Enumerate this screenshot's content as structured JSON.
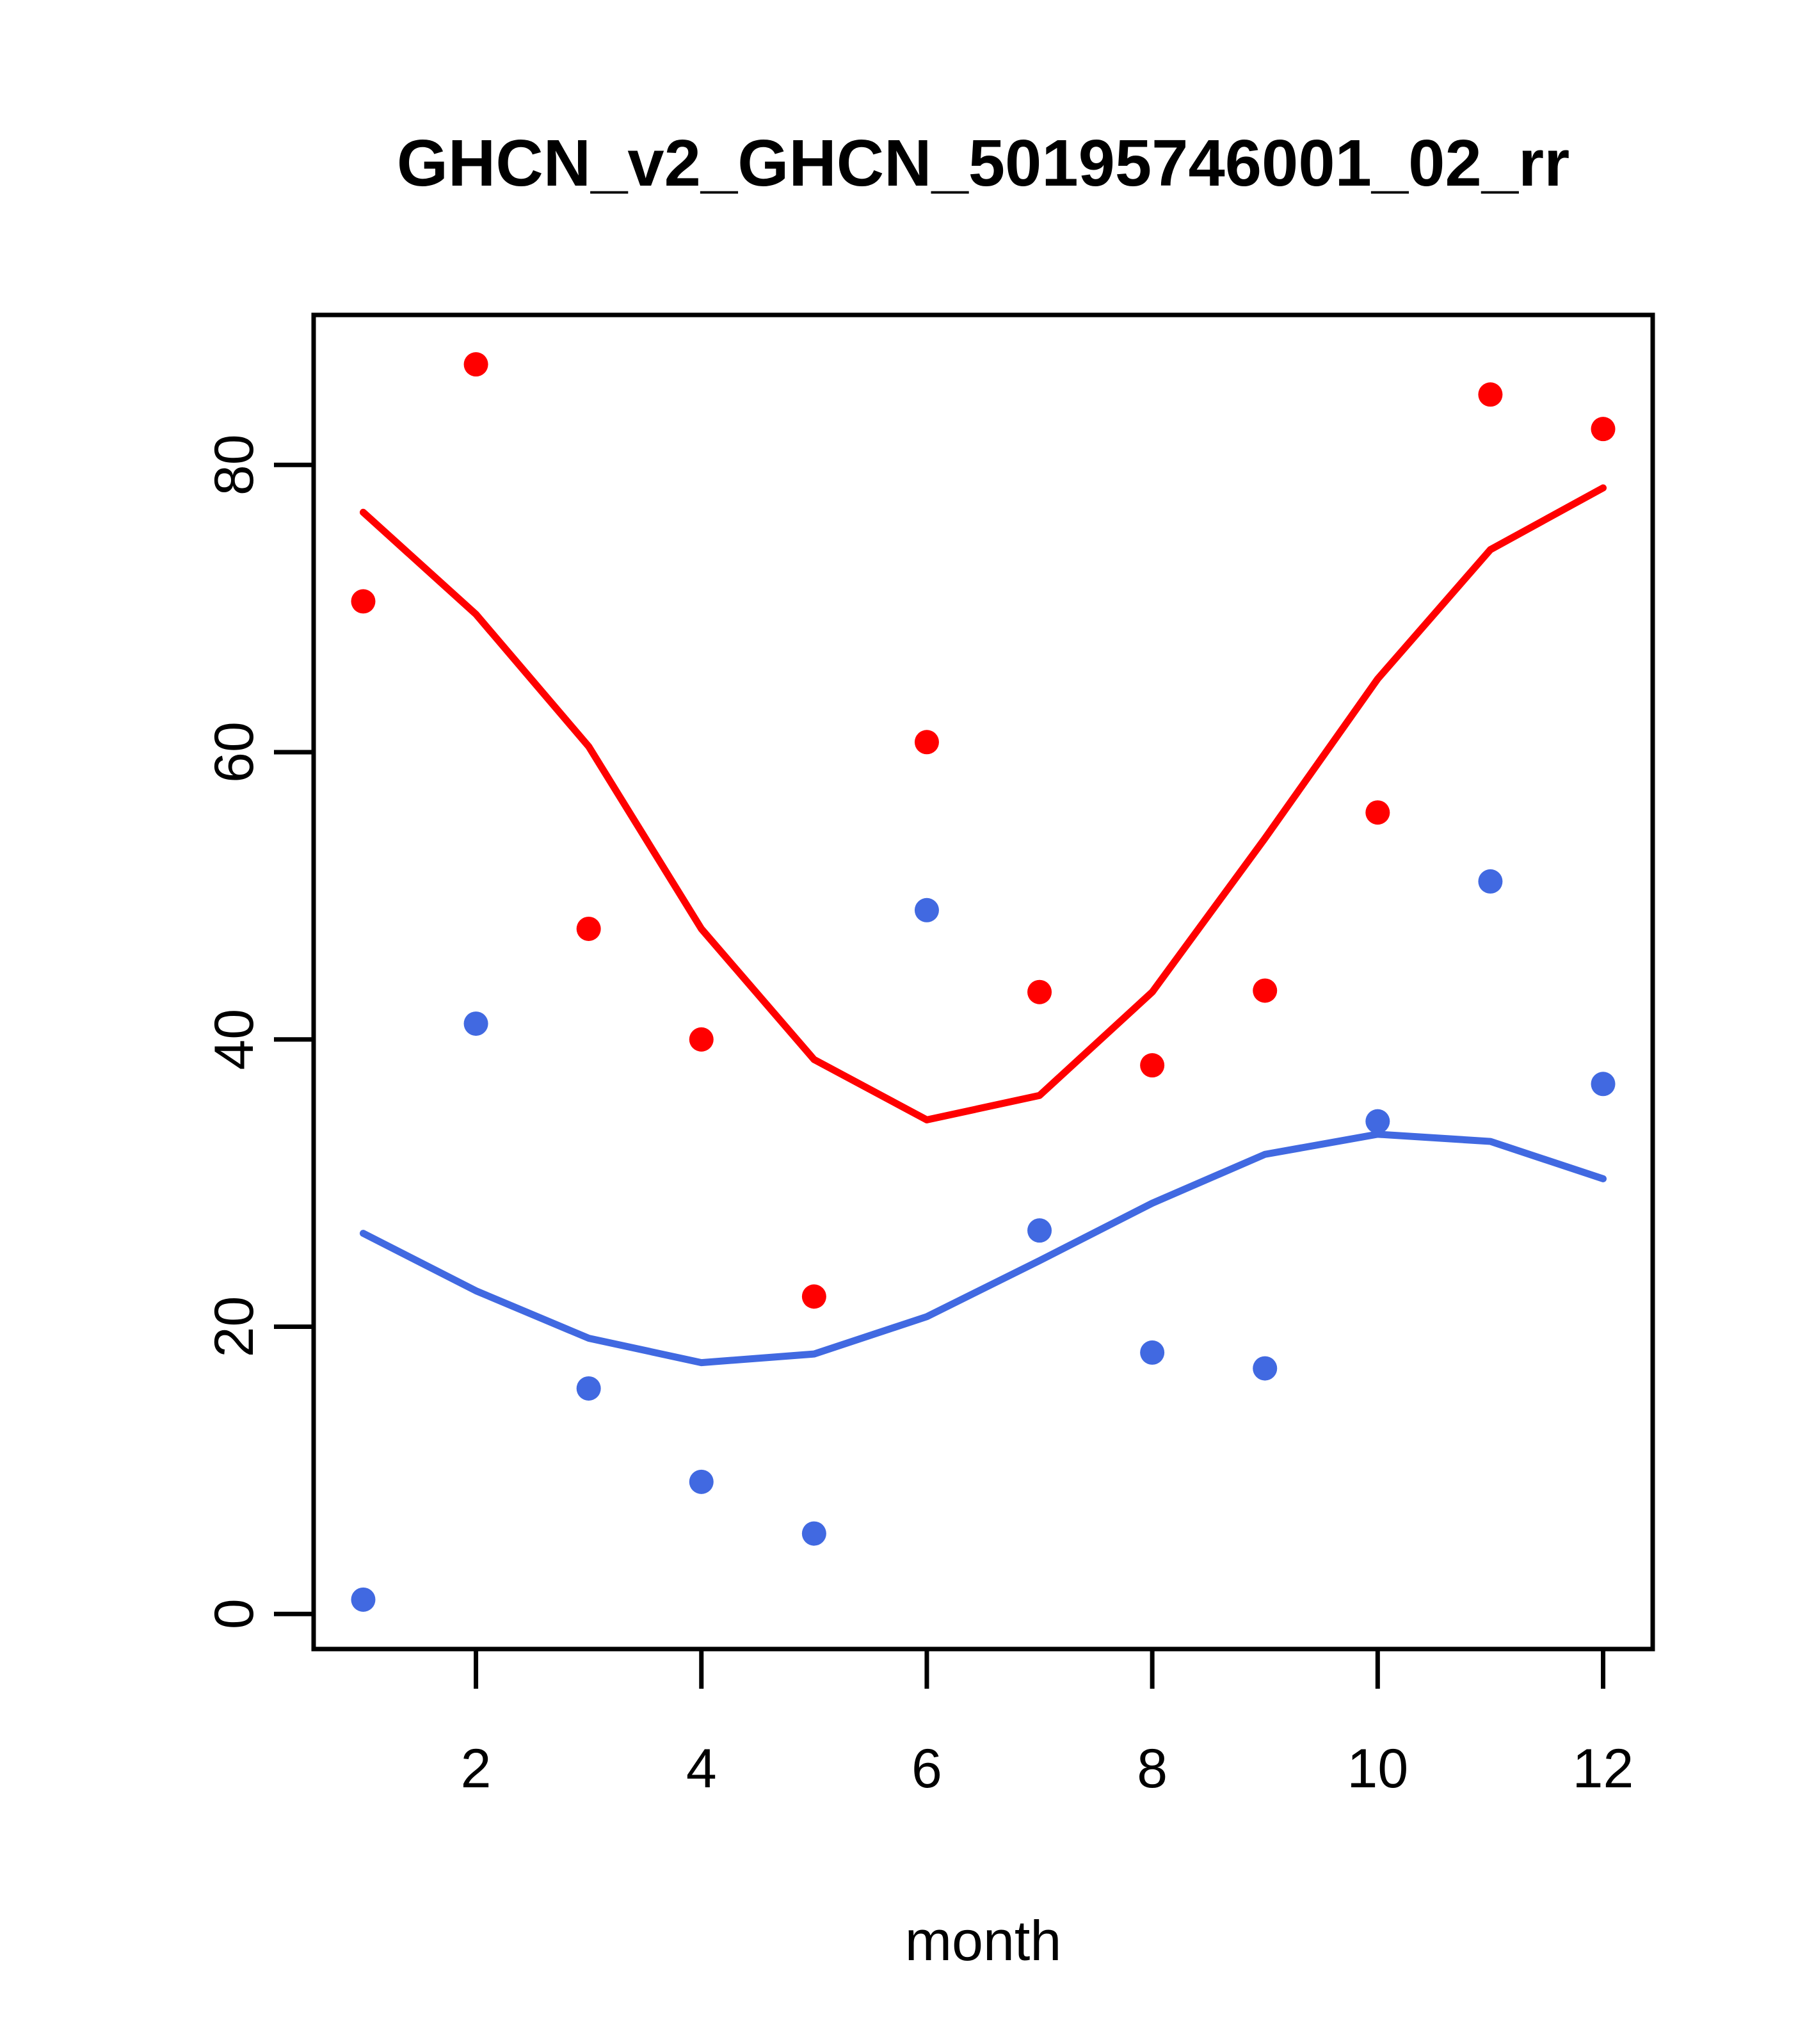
{
  "title": "GHCN_v2_GHCN_50195746001_02_rr",
  "colors": {
    "red_series": "#FF0000",
    "blue_series": "#4169E1",
    "axis": "#000000",
    "background": "#FFFFFF"
  },
  "chart_data": {
    "type": "scatter",
    "title": "GHCN_v2_GHCN_50195746001_02_rr",
    "xlabel": "month",
    "ylabel": "",
    "grid": false,
    "legend": null,
    "xlim": [
      0.56,
      12.44
    ],
    "ylim": [
      -2.44,
      90.44
    ],
    "x_ticks": [
      2,
      4,
      6,
      8,
      10,
      12
    ],
    "y_ticks": [
      0,
      20,
      40,
      60,
      80
    ],
    "months": [
      1,
      2,
      3,
      4,
      5,
      6,
      7,
      8,
      9,
      10,
      11,
      12
    ],
    "series": [
      {
        "name": "red-points",
        "draw": "points",
        "color": "#FF0000",
        "values": [
          70.5,
          87.0,
          47.7,
          40.0,
          22.1,
          60.7,
          43.3,
          38.2,
          43.4,
          55.8,
          84.9,
          82.5
        ]
      },
      {
        "name": "blue-points",
        "draw": "points",
        "color": "#4169E1",
        "values": [
          1.0,
          41.1,
          15.7,
          9.2,
          5.6,
          49.0,
          26.7,
          18.2,
          17.1,
          34.3,
          51.0,
          36.9
        ]
      },
      {
        "name": "red-lowess-line",
        "draw": "line",
        "color": "#FF0000",
        "values": [
          76.7,
          69.6,
          60.4,
          47.7,
          38.6,
          34.4,
          36.1,
          43.3,
          54.0,
          65.1,
          74.1,
          78.4
        ]
      },
      {
        "name": "blue-lowess-line",
        "draw": "line",
        "color": "#4169E1",
        "values": [
          26.5,
          22.5,
          19.2,
          17.5,
          18.1,
          20.7,
          24.6,
          28.6,
          32.0,
          33.4,
          32.9,
          30.3
        ]
      }
    ]
  }
}
